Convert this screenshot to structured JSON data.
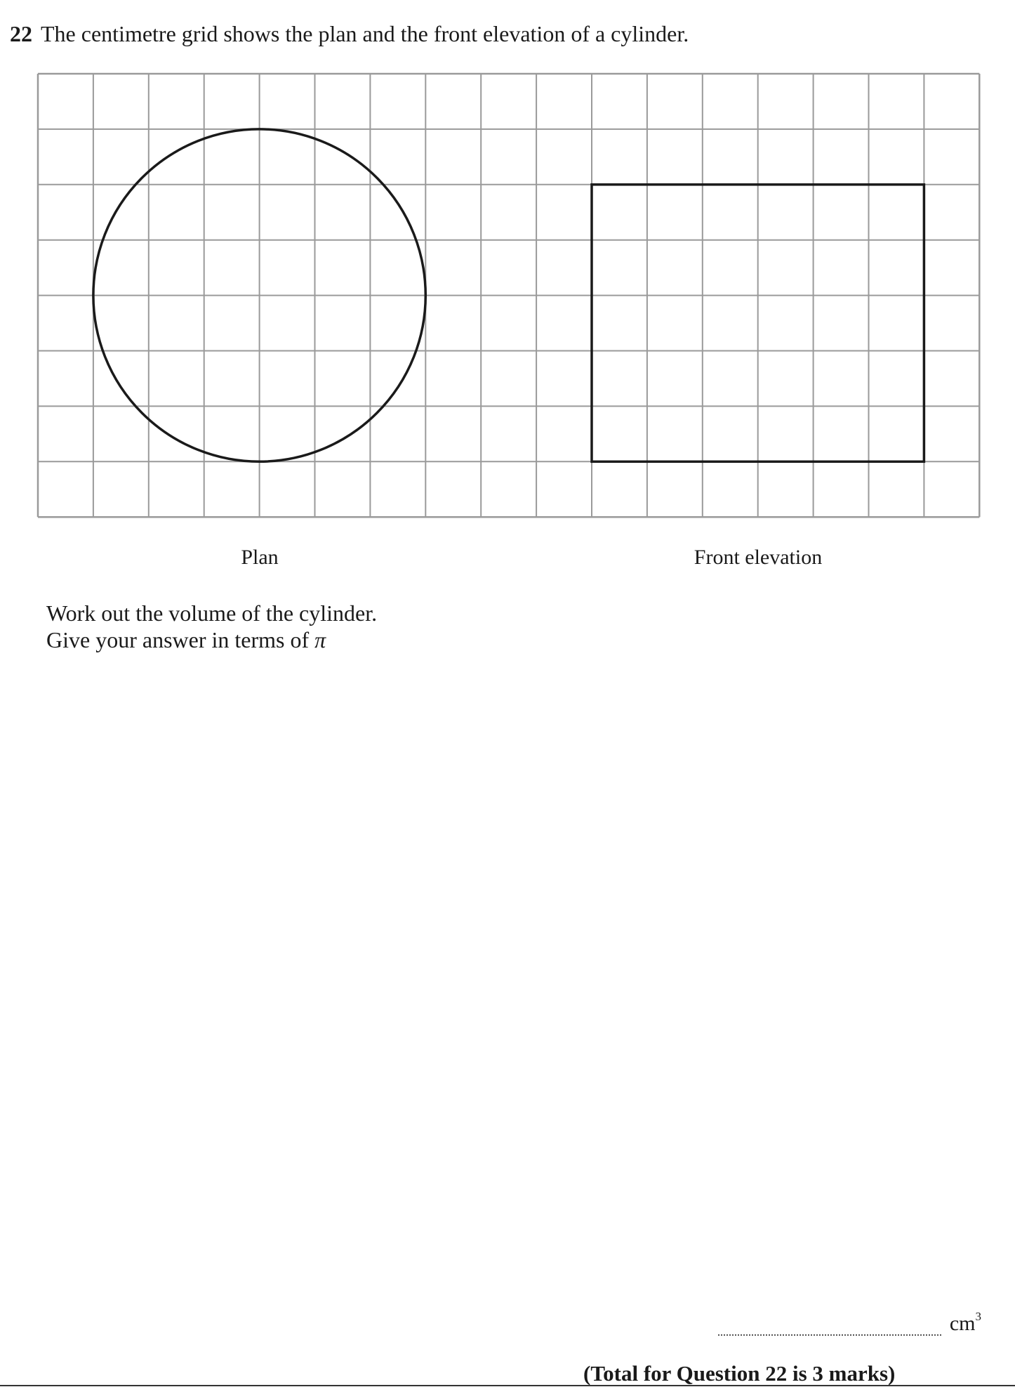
{
  "question": {
    "number": "22",
    "text": "The centimetre grid shows the plan and the front elevation of a cylinder."
  },
  "figure": {
    "plan_label": "Plan",
    "front_elevation_label": "Front elevation",
    "grid_columns": 17,
    "grid_rows": 8,
    "grid_unit": "cm",
    "plan_circle_diameter_cm": 6,
    "front_elevation_width_cm": 6,
    "front_elevation_height_cm": 5
  },
  "instructions": {
    "line1": "Work out the volume of the cylinder.",
    "line2_prefix": "Give your answer in terms of ",
    "line2_symbol": "π"
  },
  "answer": {
    "unit": "cm",
    "unit_power": "3"
  },
  "total": "(Total for Question 22 is 3 marks)"
}
